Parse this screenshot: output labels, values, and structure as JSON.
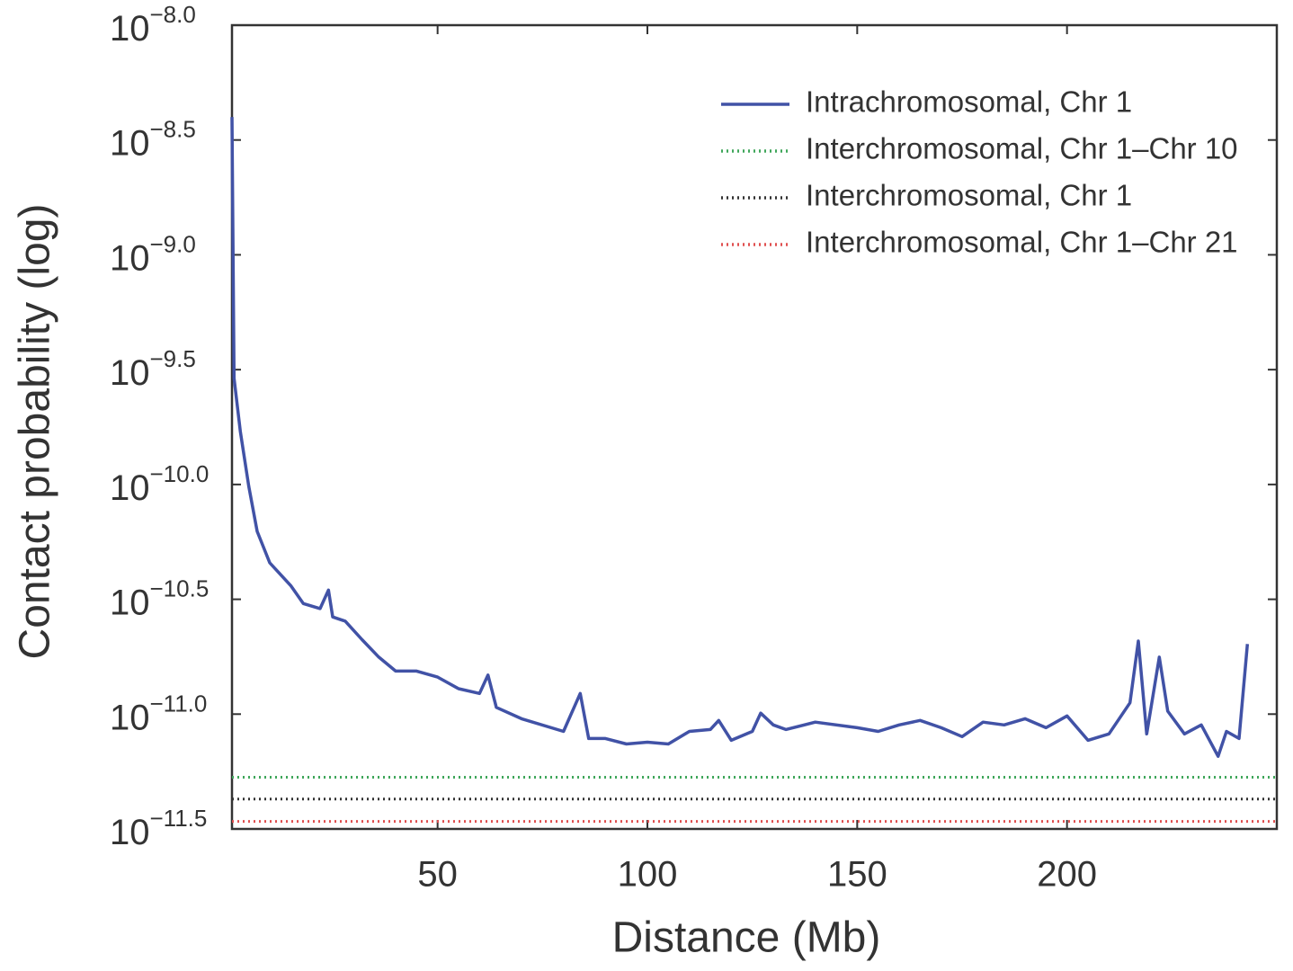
{
  "chart_data": {
    "type": "line",
    "xlabel": "Distance (Mb)",
    "ylabel": "Contact probability (log)",
    "log_scale_y": true,
    "legend": "upper right",
    "xlim": [
      1,
      250
    ],
    "xticks": [
      50,
      100,
      150,
      200
    ],
    "ylim": [
      3.1623e-12,
      1e-08
    ],
    "yticks": [
      {
        "value": 1e-08,
        "label": "10−8.0"
      },
      {
        "value": 3.1623e-09,
        "label": "10−8.5"
      },
      {
        "value": 1e-09,
        "label": "10−9.0"
      },
      {
        "value": 3.1623e-10,
        "label": "10−9.5"
      },
      {
        "value": 1e-10,
        "label": "10−10.0"
      },
      {
        "value": 3.1623e-11,
        "label": "10−10.5"
      },
      {
        "value": 1e-11,
        "label": "10−11.0"
      },
      {
        "value": 3.1623e-12,
        "label": "10−11.5"
      }
    ],
    "series": [
      {
        "name": "Intrachromosomal, Chr 1",
        "color": "#4152a6",
        "style": "solid",
        "x": [
          1,
          1.5,
          3,
          5,
          7,
          10,
          15,
          18,
          22,
          24,
          25,
          28,
          32,
          36,
          40,
          45,
          50,
          55,
          60,
          62,
          64,
          70,
          80,
          84,
          86,
          90,
          95,
          100,
          105,
          110,
          115,
          117,
          120,
          125,
          127,
          130,
          133,
          140,
          150,
          155,
          160,
          165,
          170,
          175,
          180,
          185,
          190,
          195,
          200,
          205,
          210,
          215,
          217,
          219,
          222,
          224,
          228,
          232,
          236,
          238,
          241,
          243
        ],
        "values": [
          3.98e-09,
          2.9e-10,
          1.7e-10,
          9.8e-11,
          6.25e-11,
          4.56e-11,
          3.63e-11,
          3.03e-11,
          2.88e-11,
          3.47e-11,
          2.65e-11,
          2.54e-11,
          2.11e-11,
          1.77e-11,
          1.54e-11,
          1.54e-11,
          1.45e-11,
          1.29e-11,
          1.23e-11,
          1.48e-11,
          1.07e-11,
          9.55e-12,
          8.41e-12,
          1.23e-11,
          7.83e-12,
          7.83e-12,
          7.41e-12,
          7.55e-12,
          7.41e-12,
          8.41e-12,
          8.57e-12,
          9.39e-12,
          7.69e-12,
          8.41e-12,
          1.01e-11,
          8.97e-12,
          8.57e-12,
          9.23e-12,
          8.73e-12,
          8.41e-12,
          8.97e-12,
          9.39e-12,
          8.73e-12,
          7.98e-12,
          9.23e-12,
          8.97e-12,
          9.55e-12,
          8.73e-12,
          9.82e-12,
          7.69e-12,
          8.2e-12,
          1.12e-11,
          2.08e-11,
          8.2e-12,
          1.77e-11,
          1.03e-11,
          8.2e-12,
          8.97e-12,
          6.55e-12,
          8.41e-12,
          7.83e-12,
          2.02e-11
        ]
      },
      {
        "name": "Interchromosomal, Chr 1–Chr 10",
        "color": "#3fa65a",
        "style": "dotted",
        "x": [
          1,
          250
        ],
        "values": [
          5.31e-12,
          5.31e-12
        ]
      },
      {
        "name": "Interchromosomal, Chr 1",
        "color": "#333333",
        "style": "dotted",
        "x": [
          1,
          250
        ],
        "values": [
          4.27e-12,
          4.27e-12
        ]
      },
      {
        "name": "Interchromosomal, Chr 1–Chr 21",
        "color": "#e05050",
        "style": "dotted",
        "x": [
          1,
          250
        ],
        "values": [
          3.41e-12,
          3.41e-12
        ]
      }
    ]
  }
}
